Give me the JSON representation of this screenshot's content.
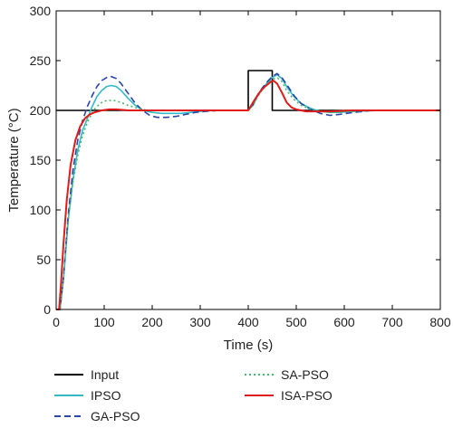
{
  "chart_data": {
    "type": "line",
    "xlabel": "Time (s)",
    "ylabel": "Temperature (°C)",
    "xlim": [
      0,
      800
    ],
    "ylim": [
      0,
      300
    ],
    "xticks": [
      0,
      100,
      200,
      300,
      400,
      500,
      600,
      700,
      800
    ],
    "yticks": [
      0,
      50,
      100,
      150,
      200,
      250,
      300
    ],
    "grid": "none",
    "legend_position": "bottom",
    "series": [
      {
        "name": "Input",
        "color": "#000000",
        "style": "solid",
        "points": [
          [
            0,
            200
          ],
          [
            400,
            200
          ],
          [
            400,
            240
          ],
          [
            450,
            240
          ],
          [
            450,
            200
          ],
          [
            800,
            200
          ]
        ]
      },
      {
        "name": "IPSO",
        "color": "#35b8c6",
        "style": "solid",
        "points": [
          [
            0,
            0
          ],
          [
            8,
            0
          ],
          [
            15,
            30
          ],
          [
            25,
            90
          ],
          [
            35,
            130
          ],
          [
            45,
            160
          ],
          [
            55,
            180
          ],
          [
            65,
            192
          ],
          [
            75,
            204
          ],
          [
            85,
            214
          ],
          [
            95,
            220
          ],
          [
            105,
            224
          ],
          [
            115,
            225
          ],
          [
            125,
            224
          ],
          [
            135,
            220
          ],
          [
            150,
            212
          ],
          [
            165,
            205
          ],
          [
            180,
            200
          ],
          [
            200,
            198
          ],
          [
            220,
            197
          ],
          [
            240,
            197
          ],
          [
            260,
            197
          ],
          [
            280,
            198
          ],
          [
            300,
            199
          ],
          [
            330,
            200
          ],
          [
            370,
            200
          ],
          [
            400,
            200
          ],
          [
            410,
            205
          ],
          [
            420,
            215
          ],
          [
            430,
            222
          ],
          [
            440,
            228
          ],
          [
            450,
            233
          ],
          [
            460,
            236
          ],
          [
            470,
            232
          ],
          [
            480,
            224
          ],
          [
            495,
            214
          ],
          [
            510,
            207
          ],
          [
            530,
            202
          ],
          [
            550,
            199
          ],
          [
            570,
            198
          ],
          [
            590,
            198
          ],
          [
            620,
            199
          ],
          [
            660,
            200
          ],
          [
            700,
            200
          ],
          [
            800,
            200
          ]
        ]
      },
      {
        "name": "GA-PSO",
        "color": "#2845a8",
        "style": "dashed",
        "points": [
          [
            0,
            0
          ],
          [
            8,
            0
          ],
          [
            15,
            32
          ],
          [
            25,
            95
          ],
          [
            35,
            140
          ],
          [
            45,
            170
          ],
          [
            55,
            190
          ],
          [
            65,
            204
          ],
          [
            75,
            215
          ],
          [
            85,
            224
          ],
          [
            95,
            230
          ],
          [
            105,
            233
          ],
          [
            115,
            234
          ],
          [
            125,
            232
          ],
          [
            135,
            227
          ],
          [
            150,
            217
          ],
          [
            165,
            207
          ],
          [
            180,
            200
          ],
          [
            195,
            195
          ],
          [
            210,
            193
          ],
          [
            230,
            193
          ],
          [
            250,
            194
          ],
          [
            270,
            196
          ],
          [
            290,
            198
          ],
          [
            310,
            199
          ],
          [
            340,
            200
          ],
          [
            400,
            200
          ],
          [
            410,
            206
          ],
          [
            420,
            216
          ],
          [
            430,
            223
          ],
          [
            440,
            229
          ],
          [
            450,
            234
          ],
          [
            460,
            237
          ],
          [
            470,
            233
          ],
          [
            480,
            226
          ],
          [
            495,
            215
          ],
          [
            510,
            207
          ],
          [
            530,
            201
          ],
          [
            550,
            197
          ],
          [
            570,
            195
          ],
          [
            590,
            196
          ],
          [
            620,
            198
          ],
          [
            660,
            200
          ],
          [
            700,
            200
          ],
          [
            800,
            200
          ]
        ]
      },
      {
        "name": "SA-PSO",
        "color": "#49b86a",
        "style": "dotted",
        "points": [
          [
            0,
            0
          ],
          [
            8,
            0
          ],
          [
            15,
            30
          ],
          [
            25,
            90
          ],
          [
            35,
            128
          ],
          [
            45,
            155
          ],
          [
            55,
            175
          ],
          [
            65,
            188
          ],
          [
            75,
            198
          ],
          [
            85,
            204
          ],
          [
            95,
            208
          ],
          [
            105,
            210
          ],
          [
            120,
            210
          ],
          [
            135,
            208
          ],
          [
            150,
            205
          ],
          [
            170,
            202
          ],
          [
            190,
            200
          ],
          [
            230,
            200
          ],
          [
            300,
            200
          ],
          [
            400,
            200
          ],
          [
            410,
            205
          ],
          [
            420,
            214
          ],
          [
            430,
            221
          ],
          [
            440,
            227
          ],
          [
            450,
            231
          ],
          [
            460,
            233
          ],
          [
            470,
            229
          ],
          [
            480,
            220
          ],
          [
            495,
            211
          ],
          [
            510,
            205
          ],
          [
            530,
            201
          ],
          [
            550,
            199
          ],
          [
            580,
            198
          ],
          [
            620,
            199
          ],
          [
            680,
            200
          ],
          [
            800,
            200
          ]
        ]
      },
      {
        "name": "ISA-PSO",
        "color": "#e11a1a",
        "style": "solid",
        "points": [
          [
            0,
            0
          ],
          [
            6,
            0
          ],
          [
            10,
            25
          ],
          [
            15,
            65
          ],
          [
            22,
            110
          ],
          [
            30,
            145
          ],
          [
            40,
            170
          ],
          [
            50,
            184
          ],
          [
            60,
            192
          ],
          [
            70,
            196
          ],
          [
            80,
            198
          ],
          [
            95,
            200
          ],
          [
            110,
            201
          ],
          [
            125,
            201
          ],
          [
            150,
            200
          ],
          [
            200,
            200
          ],
          [
            300,
            200
          ],
          [
            400,
            200
          ],
          [
            405,
            204
          ],
          [
            415,
            212
          ],
          [
            425,
            219
          ],
          [
            435,
            224
          ],
          [
            445,
            228
          ],
          [
            452,
            230
          ],
          [
            460,
            227
          ],
          [
            470,
            218
          ],
          [
            480,
            208
          ],
          [
            490,
            203
          ],
          [
            500,
            201
          ],
          [
            520,
            199
          ],
          [
            540,
            199
          ],
          [
            570,
            199
          ],
          [
            620,
            200
          ],
          [
            800,
            200
          ]
        ]
      }
    ]
  }
}
